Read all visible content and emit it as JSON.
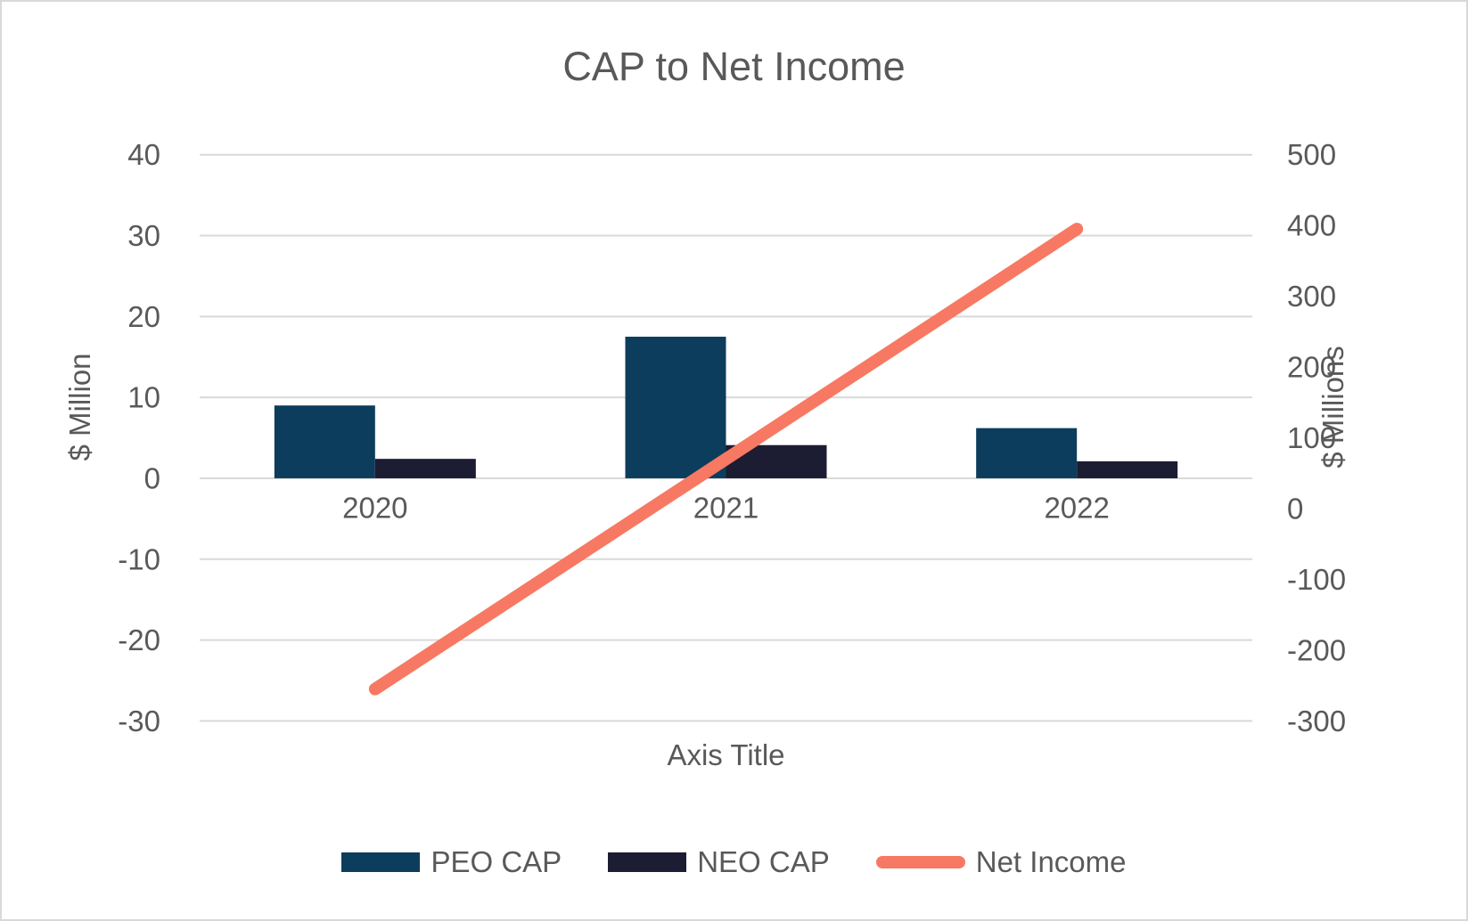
{
  "window": {
    "background": "#ffffff",
    "border_color": "#d9d9d9",
    "text_color": "#595959"
  },
  "chart_data": {
    "type": "combo",
    "title": "CAP to Net Income",
    "categories": [
      "2020",
      "2021",
      "2022"
    ],
    "series": [
      {
        "name": "PEO CAP",
        "type": "bar",
        "axis": "left",
        "color": "#0d3d5c",
        "values": [
          9.0,
          17.5,
          6.2
        ]
      },
      {
        "name": "NEO CAP",
        "type": "bar",
        "axis": "left",
        "color": "#1c1c33",
        "values": [
          2.4,
          4.1,
          2.1
        ]
      },
      {
        "name": "Net Income",
        "type": "line",
        "axis": "right",
        "color": "#f77963",
        "values": [
          -255,
          70,
          395
        ]
      }
    ],
    "left_axis": {
      "label": "$ Million",
      "min": -30,
      "max": 40,
      "tick_step": 10,
      "ticks": [
        40,
        30,
        20,
        10,
        0,
        -10,
        -20,
        -30
      ]
    },
    "right_axis": {
      "label": "$ Millions",
      "min": -300,
      "max": 500,
      "tick_step": 100,
      "ticks": [
        500,
        400,
        300,
        200,
        100,
        0,
        -100,
        -200,
        -300
      ]
    },
    "x_axis": {
      "label": "Axis Title"
    },
    "grid": true,
    "gridline_color": "#d9d9d9",
    "legend_position": "bottom"
  }
}
